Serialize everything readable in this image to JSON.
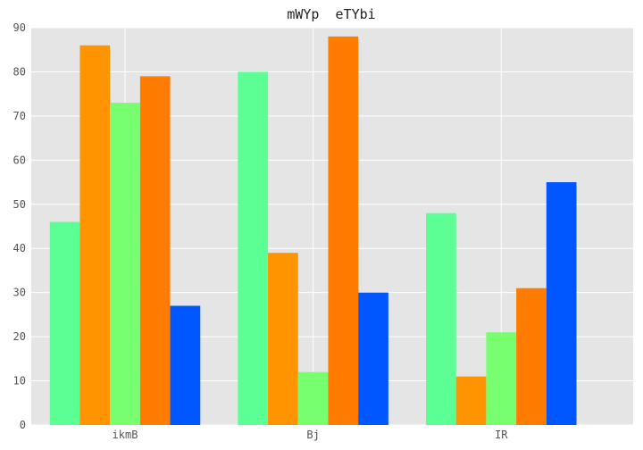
{
  "chart_data": {
    "type": "bar",
    "title": "mWYp  eTYbi",
    "xlabel": "",
    "ylabel": "",
    "categories": [
      "ikmB",
      "Bj",
      "IR"
    ],
    "series": [
      {
        "values": [
          46,
          80,
          48
        ],
        "color": "#5cff94"
      },
      {
        "values": [
          86,
          39,
          11
        ],
        "color": "#ff9400"
      },
      {
        "values": [
          73,
          12,
          21
        ],
        "color": "#77ff70"
      },
      {
        "values": [
          79,
          88,
          31
        ],
        "color": "#ff7c00"
      },
      {
        "values": [
          27,
          30,
          55
        ],
        "color": "#0057ff"
      }
    ],
    "ylim": [
      0,
      90
    ],
    "yticks": [
      0,
      10,
      20,
      30,
      40,
      50,
      60,
      70,
      80,
      90
    ],
    "grid": true,
    "legend": "none",
    "background": "#e5e5e5",
    "grid_color": "#ffffff"
  }
}
